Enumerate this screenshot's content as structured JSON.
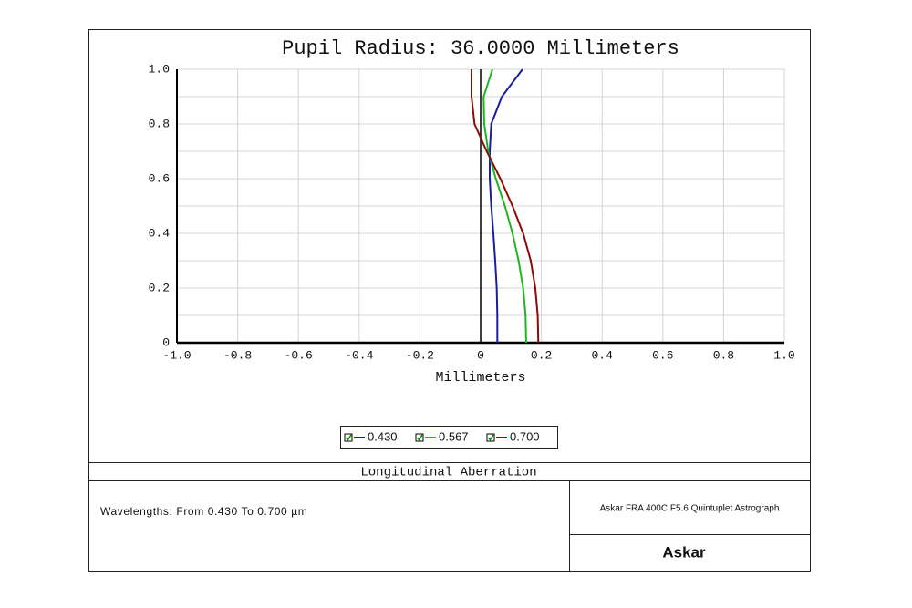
{
  "chart_data": {
    "type": "line",
    "title": "Pupil Radius: 36.0000 Millimeters",
    "x_label": "Millimeters",
    "pupil_zones": [
      0,
      0.1,
      0.2,
      0.3,
      0.4,
      0.5,
      0.6,
      0.7,
      0.8,
      0.9,
      1.0
    ],
    "series": [
      {
        "name": "0.430",
        "color": "#1c1ca0",
        "values": [
          0.055,
          0.055,
          0.053,
          0.048,
          0.042,
          0.035,
          0.03,
          0.03,
          0.035,
          0.07,
          0.138
        ]
      },
      {
        "name": "0.567",
        "color": "#1fb51f",
        "values": [
          0.15,
          0.148,
          0.14,
          0.125,
          0.105,
          0.08,
          0.05,
          0.025,
          0.012,
          0.01,
          0.039
        ]
      },
      {
        "name": "0.700",
        "color": "#8b0a0a",
        "values": [
          0.19,
          0.188,
          0.18,
          0.165,
          0.14,
          0.105,
          0.065,
          0.02,
          -0.02,
          -0.03,
          -0.03
        ]
      }
    ],
    "xlim": [
      -1,
      1
    ],
    "xticks": [
      {
        "value": -1,
        "label": "-1.0"
      },
      {
        "value": -0.8,
        "label": "-0.8"
      },
      {
        "value": -0.6,
        "label": "-0.6"
      },
      {
        "value": -0.4,
        "label": "-0.4"
      },
      {
        "value": -0.2,
        "label": "-0.2"
      },
      0,
      0.2,
      0.4,
      0.6,
      0.8,
      {
        "value": 1,
        "label": "1.0"
      }
    ],
    "ylim": [
      0,
      1
    ],
    "yticks": [
      0,
      0.2,
      0.4,
      0.6,
      0.8,
      {
        "value": 1,
        "label": "1.0"
      }
    ],
    "y_minor_grid": [
      0.1,
      0.3,
      0.5,
      0.7,
      0.9
    ],
    "grid": true
  },
  "report": {
    "plot_name": "Longitudinal Aberration",
    "wavelengths": "Wavelengths: From 0.430 To 0.700 µm",
    "system": "Askar FRA 400C F5.6 Quintuplet Astrograph",
    "brand": "Askar"
  }
}
